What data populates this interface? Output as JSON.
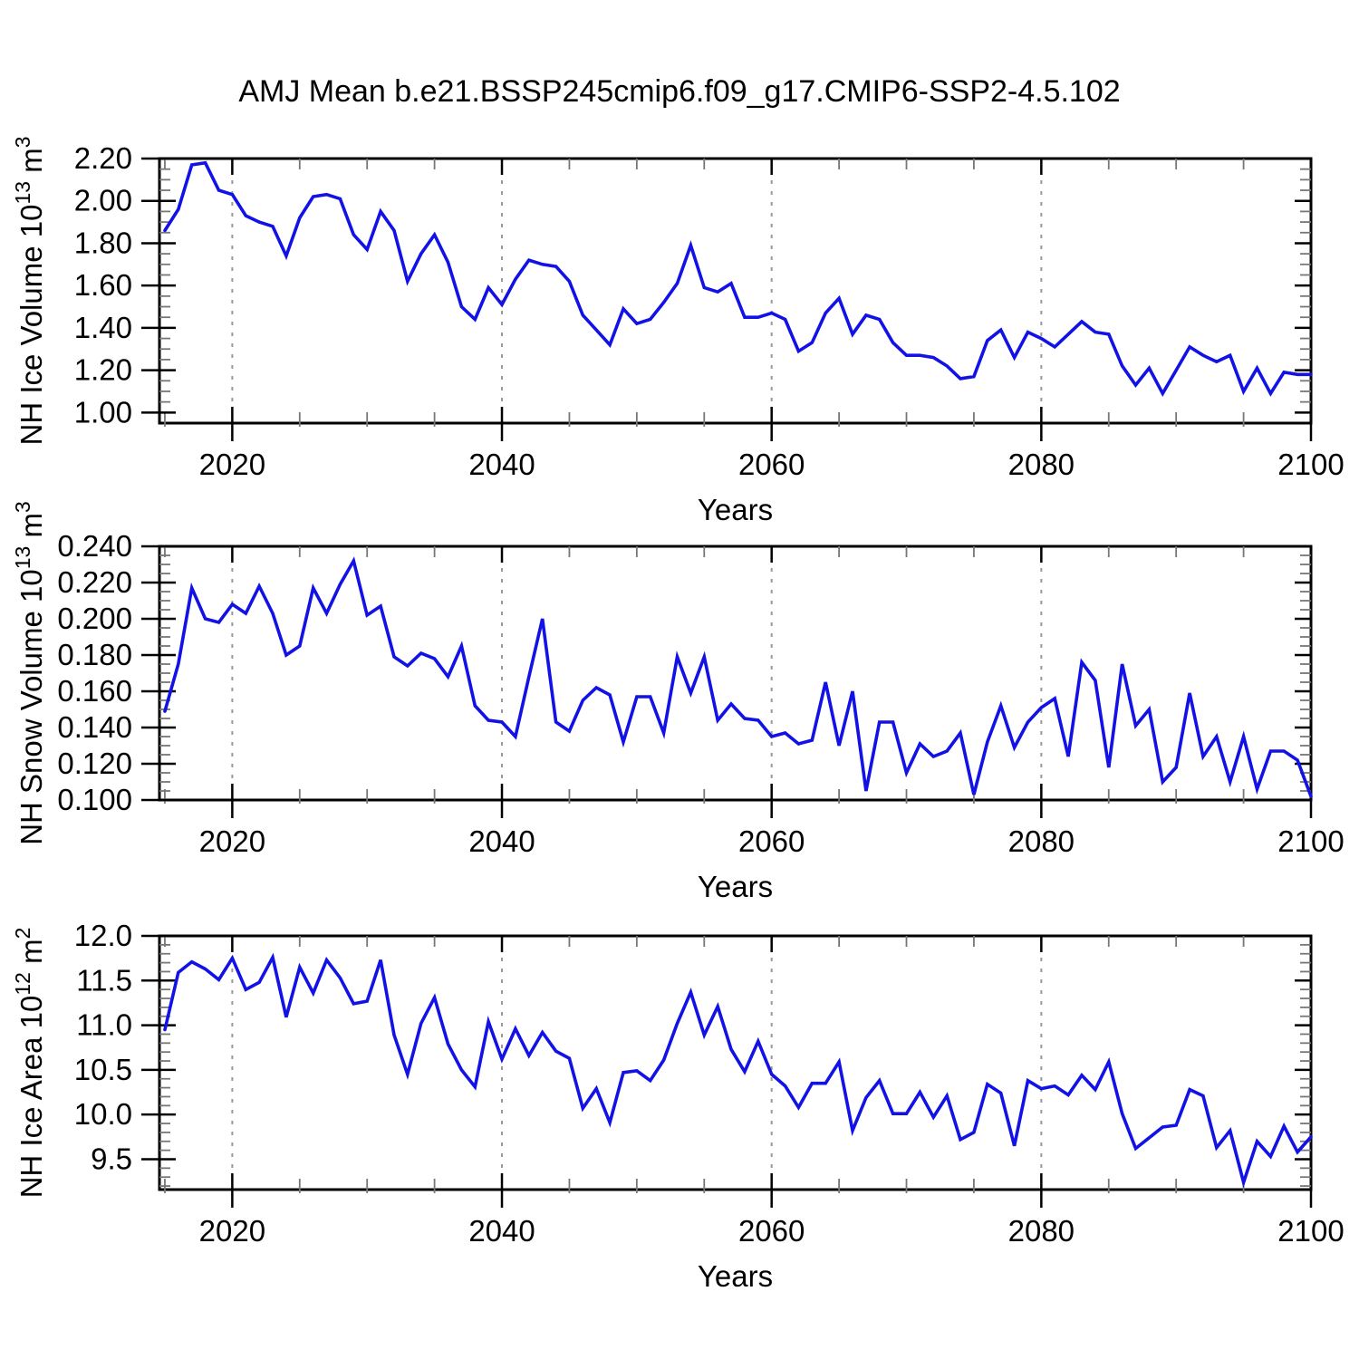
{
  "chart_data": {
    "type": "line",
    "title": "AMJ Mean b.e21.BSSP245cmip6.f09_g17.CMIP6-SSP2-4.5.102",
    "xlabel": "Years",
    "line_color": "#1212e6",
    "grid_color": "#999999",
    "legend": "none",
    "x_range": [
      2014.6,
      2100
    ],
    "x_ticks": [
      2020,
      2040,
      2060,
      2080,
      2100
    ],
    "x_minor_step": 5,
    "years": [
      2015,
      2016,
      2017,
      2018,
      2019,
      2020,
      2021,
      2022,
      2023,
      2024,
      2025,
      2026,
      2027,
      2028,
      2029,
      2030,
      2031,
      2032,
      2033,
      2034,
      2035,
      2036,
      2037,
      2038,
      2039,
      2040,
      2041,
      2042,
      2043,
      2044,
      2045,
      2046,
      2047,
      2048,
      2049,
      2050,
      2051,
      2052,
      2053,
      2054,
      2055,
      2056,
      2057,
      2058,
      2059,
      2060,
      2061,
      2062,
      2063,
      2064,
      2065,
      2066,
      2067,
      2068,
      2069,
      2070,
      2071,
      2072,
      2073,
      2074,
      2075,
      2076,
      2077,
      2078,
      2079,
      2080,
      2081,
      2082,
      2083,
      2084,
      2085,
      2086,
      2087,
      2088,
      2089,
      2090,
      2091,
      2092,
      2093,
      2094,
      2095,
      2096,
      2097,
      2098,
      2099,
      2100
    ],
    "panels": [
      {
        "name": "nh-ice-volume",
        "ylabel_base": "NH Ice Volume 10",
        "ylabel_exp": "13",
        "ylabel_unit": " m",
        "ylabel_unit_exp": "3",
        "y_range": [
          0.95,
          2.2
        ],
        "y_tick_start": 1.0,
        "y_tick_step": 0.2,
        "y_tick_decimals": 2,
        "y_minor_step": 0.05,
        "values": [
          1.86,
          1.96,
          2.17,
          2.18,
          2.05,
          2.03,
          1.93,
          1.9,
          1.88,
          1.74,
          1.92,
          2.02,
          2.03,
          2.01,
          1.84,
          1.77,
          1.95,
          1.86,
          1.62,
          1.75,
          1.84,
          1.71,
          1.5,
          1.44,
          1.59,
          1.51,
          1.63,
          1.72,
          1.7,
          1.69,
          1.62,
          1.46,
          1.39,
          1.32,
          1.49,
          1.42,
          1.44,
          1.52,
          1.61,
          1.79,
          1.59,
          1.57,
          1.61,
          1.45,
          1.45,
          1.47,
          1.44,
          1.29,
          1.33,
          1.47,
          1.54,
          1.37,
          1.46,
          1.44,
          1.33,
          1.27,
          1.27,
          1.26,
          1.22,
          1.16,
          1.17,
          1.34,
          1.39,
          1.26,
          1.38,
          1.35,
          1.31,
          1.37,
          1.43,
          1.38,
          1.37,
          1.22,
          1.13,
          1.21,
          1.09,
          1.2,
          1.31,
          1.27,
          1.24,
          1.27,
          1.1,
          1.21,
          1.09,
          1.19,
          1.18,
          1.18
        ]
      },
      {
        "name": "nh-snow-volume",
        "ylabel_base": "NH Snow Volume 10",
        "ylabel_exp": "13",
        "ylabel_unit": " m",
        "ylabel_unit_exp": "3",
        "y_range": [
          0.1,
          0.24
        ],
        "y_tick_start": 0.1,
        "y_tick_step": 0.02,
        "y_tick_decimals": 3,
        "y_minor_step": 0.005,
        "values": [
          0.149,
          0.175,
          0.217,
          0.2,
          0.198,
          0.208,
          0.203,
          0.218,
          0.203,
          0.18,
          0.185,
          0.217,
          0.203,
          0.219,
          0.232,
          0.202,
          0.207,
          0.179,
          0.174,
          0.181,
          0.178,
          0.168,
          0.185,
          0.152,
          0.144,
          0.143,
          0.135,
          0.168,
          0.2,
          0.143,
          0.138,
          0.155,
          0.162,
          0.158,
          0.132,
          0.157,
          0.157,
          0.137,
          0.179,
          0.159,
          0.179,
          0.144,
          0.153,
          0.145,
          0.144,
          0.135,
          0.137,
          0.131,
          0.133,
          0.165,
          0.13,
          0.16,
          0.105,
          0.143,
          0.143,
          0.115,
          0.131,
          0.124,
          0.127,
          0.137,
          0.103,
          0.132,
          0.152,
          0.129,
          0.143,
          0.151,
          0.156,
          0.124,
          0.176,
          0.166,
          0.118,
          0.175,
          0.141,
          0.15,
          0.11,
          0.118,
          0.159,
          0.124,
          0.135,
          0.11,
          0.135,
          0.106,
          0.127,
          0.127,
          0.122,
          0.102
        ]
      },
      {
        "name": "nh-ice-area",
        "ylabel_base": "NH Ice Area 10",
        "ylabel_exp": "12",
        "ylabel_unit": " m",
        "ylabel_unit_exp": "2",
        "y_range": [
          9.16,
          12.0
        ],
        "y_tick_start": 9.5,
        "y_tick_step": 0.5,
        "y_tick_decimals": 1,
        "y_minor_step": 0.1,
        "values": [
          10.95,
          11.59,
          11.71,
          11.63,
          11.51,
          11.75,
          11.4,
          11.48,
          11.76,
          11.09,
          11.65,
          11.36,
          11.73,
          11.53,
          11.24,
          11.27,
          11.73,
          10.89,
          10.45,
          11.02,
          11.31,
          10.79,
          10.5,
          10.31,
          11.04,
          10.62,
          10.96,
          10.66,
          10.92,
          10.71,
          10.63,
          10.07,
          10.29,
          9.91,
          10.47,
          10.49,
          10.38,
          10.61,
          11.02,
          11.37,
          10.89,
          11.21,
          10.73,
          10.48,
          10.82,
          10.45,
          10.32,
          10.08,
          10.35,
          10.35,
          10.59,
          9.82,
          10.19,
          10.38,
          10.01,
          10.01,
          10.25,
          9.97,
          10.21,
          9.72,
          9.8,
          10.34,
          10.24,
          9.65,
          10.38,
          10.29,
          10.32,
          10.22,
          10.44,
          10.28,
          10.59,
          10.01,
          9.62,
          9.74,
          9.86,
          9.88,
          10.28,
          10.21,
          9.63,
          9.82,
          9.24,
          9.7,
          9.53,
          9.87,
          9.58,
          9.75
        ]
      }
    ]
  }
}
